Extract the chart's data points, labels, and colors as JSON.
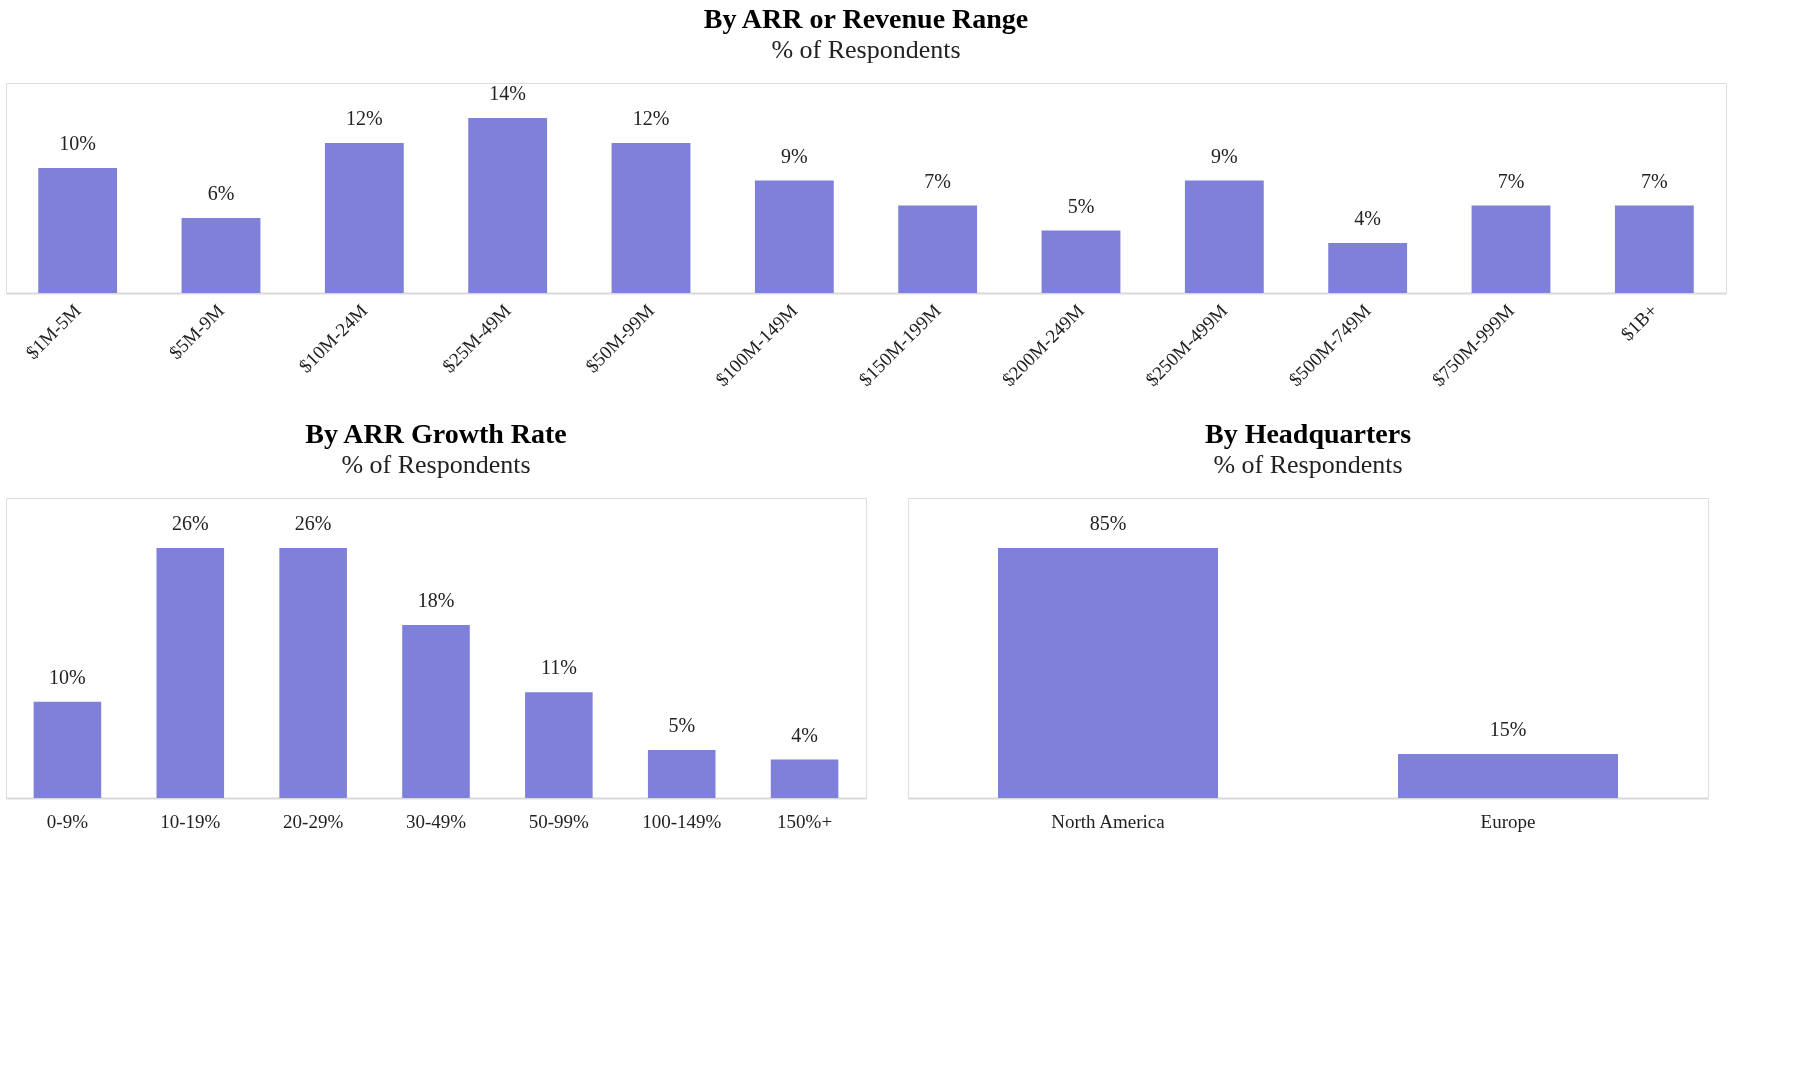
{
  "chart_data": [
    {
      "type": "bar",
      "title": "By ARR or Revenue Range",
      "subtitle": "% of Respondents",
      "categories": [
        "$1M-5M",
        "$5M-9M",
        "$10M-24M",
        "$25M-49M",
        "$50M-99M",
        "$100M-149M",
        "$150M-199M",
        "$200M-249M",
        "$250M-499M",
        "$500M-749M",
        "$750M-999M",
        "$1B+"
      ],
      "values": [
        10,
        6,
        12,
        14,
        12,
        9,
        7,
        5,
        9,
        4,
        7,
        7
      ],
      "value_labels": [
        "10%",
        "6%",
        "12%",
        "14%",
        "12%",
        "9%",
        "7%",
        "5%",
        "9%",
        "4%",
        "7%",
        "7%"
      ],
      "color": "#7e80da"
    },
    {
      "type": "bar",
      "title": "By ARR Growth Rate",
      "subtitle": "% of Respondents",
      "categories": [
        "0-9%",
        "10-19%",
        "20-29%",
        "30-49%",
        "50-99%",
        "100-149%",
        "150%+"
      ],
      "values": [
        10,
        26,
        26,
        18,
        11,
        5,
        4
      ],
      "value_labels": [
        "10%",
        "26%",
        "26%",
        "18%",
        "11%",
        "5%",
        "4%"
      ],
      "color": "#7e80da"
    },
    {
      "type": "bar",
      "title": "By Headquarters",
      "subtitle": "% of Respondents",
      "categories": [
        "North America",
        "Europe"
      ],
      "values": [
        85,
        15
      ],
      "value_labels": [
        "85%",
        "15%"
      ],
      "color": "#7e80da"
    }
  ]
}
